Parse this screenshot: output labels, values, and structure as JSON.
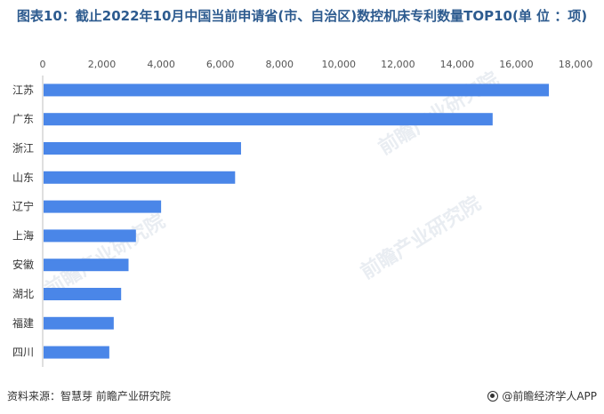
{
  "title": "图表10：截止2022年10月中国当前申请省(市、自治区)数控机床专利数量TOP10(单 位 ：项)",
  "watermark": "前瞻产业研究院",
  "footer": {
    "source": "资料来源：智慧芽 前瞻产业研究院",
    "brand": "@前瞻经济学人APP"
  },
  "colors": {
    "bar": "#4a86e8",
    "title": "#2d5b8f"
  },
  "chart_data": {
    "type": "bar",
    "orientation": "horizontal",
    "categories": [
      "江苏",
      "广东",
      "浙江",
      "山东",
      "辽宁",
      "上海",
      "安徽",
      "湖北",
      "福建",
      "四川"
    ],
    "values": [
      17100,
      15200,
      6700,
      6500,
      4000,
      3150,
      2900,
      2650,
      2400,
      2250
    ],
    "xlim": [
      0,
      18000
    ],
    "xticks": [
      "0",
      "2,000",
      "4,000",
      "6,000",
      "8,000",
      "10,000",
      "12,000",
      "14,000",
      "16,000",
      "18,000"
    ],
    "x_axis_position": "top",
    "grid": false,
    "legend": "none"
  }
}
